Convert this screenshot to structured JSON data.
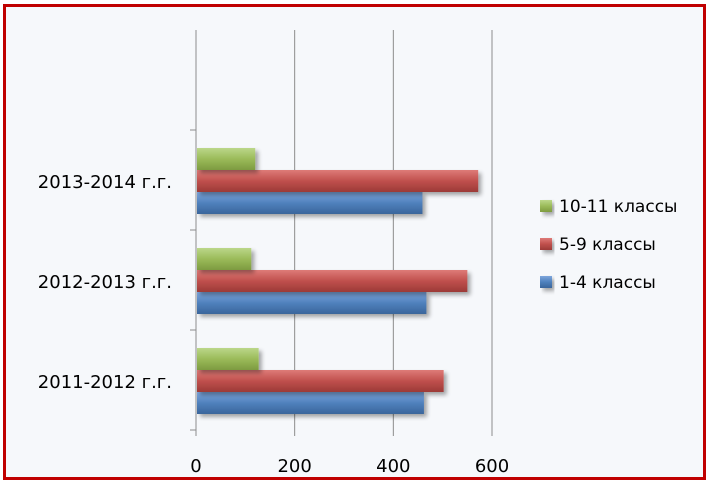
{
  "chart_data": {
    "type": "bar",
    "orientation": "horizontal",
    "categories": [
      "2011-2012 г.г.",
      "2012-2013 г.г.",
      "2013-2014 г.г."
    ],
    "series": [
      {
        "name": "1-4 классы",
        "values": [
          460,
          465,
          457
        ],
        "color": "#4f81bd"
      },
      {
        "name": "5-9 классы",
        "values": [
          500,
          548,
          570
        ],
        "color": "#c0504d"
      },
      {
        "name": "10-11 классы",
        "values": [
          125,
          110,
          118
        ],
        "color": "#9bbb59"
      }
    ],
    "xlim": [
      0,
      600
    ],
    "xticks": [
      "0",
      "200",
      "400",
      "600"
    ],
    "grid": "vertical",
    "legend_position": "right",
    "legend_order": [
      "10-11 классы",
      "5-9 классы",
      "1-4 классы"
    ]
  }
}
